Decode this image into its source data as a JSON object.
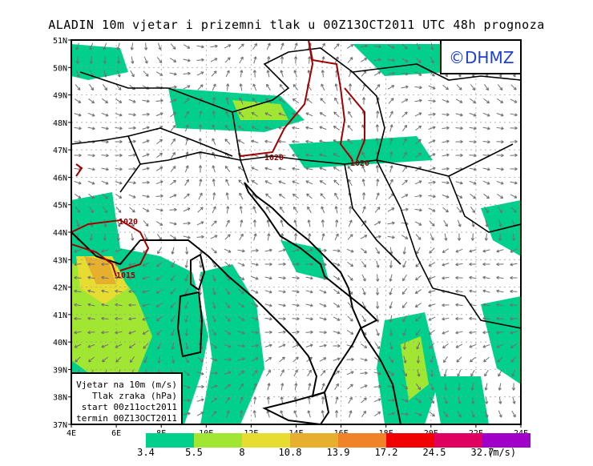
{
  "title": "ALADIN 10m vjetar i prizemni tlak u 00Z13OCT2011 UTC 48h prognoza",
  "logo": "©DHMZ",
  "axes": {
    "lat_labels": [
      "37N",
      "38N",
      "39N",
      "40N",
      "41N",
      "42N",
      "43N",
      "44N",
      "45N",
      "46N",
      "47N",
      "48N",
      "49N",
      "50N",
      "51N"
    ],
    "lon_labels": [
      "4E",
      "6E",
      "8E",
      "10E",
      "12E",
      "14E",
      "16E",
      "18E",
      "20E",
      "22E",
      "24E"
    ]
  },
  "legend_box": {
    "line1": "Vjetar na 10m (m/s)",
    "line2": "Tlak zraka (hPa)",
    "line3": "start 00z11oct2011",
    "line4": "termin 00Z13OCT2011"
  },
  "colorbar": {
    "colors": [
      "#00d08c",
      "#a0e632",
      "#e6dc32",
      "#e6af2d",
      "#f08228",
      "#f00000",
      "#e00060",
      "#a000c8"
    ],
    "labels": [
      "3.4",
      "5.5",
      "8",
      "10.8",
      "13.9",
      "17.2",
      "24.5",
      "32.7"
    ],
    "unit": "(m/s)"
  },
  "isobars": {
    "color": "#a00000",
    "labels": [
      "1020",
      "1020",
      "1020",
      "1020",
      "1015"
    ]
  }
}
